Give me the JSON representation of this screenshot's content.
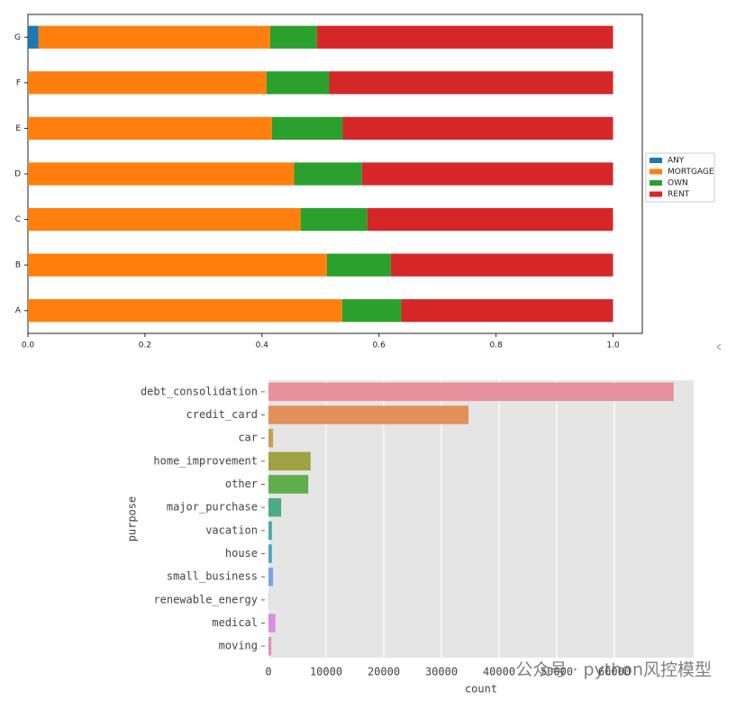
{
  "chart_data": [
    {
      "type": "bar",
      "orientation": "horizontal",
      "stacked": true,
      "categories": [
        "A",
        "B",
        "C",
        "D",
        "E",
        "F",
        "G"
      ],
      "series": [
        {
          "name": "ANY",
          "color": "#1f77b4",
          "values": [
            0,
            0,
            0,
            0,
            0,
            0,
            0.018
          ]
        },
        {
          "name": "MORTGAGE",
          "color": "#ff7f0e",
          "values": [
            0.537,
            0.511,
            0.466,
            0.455,
            0.417,
            0.408,
            0.396
          ]
        },
        {
          "name": "OWN",
          "color": "#2ca02c",
          "values": [
            0.101,
            0.109,
            0.114,
            0.116,
            0.121,
            0.107,
            0.08
          ]
        },
        {
          "name": "RENT",
          "color": "#d62728",
          "values": [
            0.362,
            0.38,
            0.42,
            0.429,
            0.462,
            0.485,
            0.506
          ]
        }
      ],
      "xlim": [
        0,
        1.05
      ],
      "xticks": [
        {
          "value": 0,
          "label": "0.0"
        },
        0.2,
        0.4,
        0.6,
        0.8,
        {
          "value": 1,
          "label": "1.0"
        }
      ],
      "legend": "outside-right",
      "grid": false
    },
    {
      "type": "bar",
      "orientation": "horizontal",
      "stacked": false,
      "xlabel": "count",
      "ylabel": "purpose",
      "categories": [
        "debt_consolidation",
        "credit_card",
        "car",
        "home_improvement",
        "other",
        "major_purchase",
        "vacation",
        "house",
        "small_business",
        "renewable_energy",
        "medical",
        "moving"
      ],
      "values": [
        70300,
        34700,
        800,
        7300,
        6900,
        2200,
        600,
        600,
        800,
        50,
        1200,
        500
      ],
      "colors": [
        "#e8919e",
        "#e2905a",
        "#c89f5a",
        "#9ea240",
        "#5fae4a",
        "#4aab84",
        "#4aa9a8",
        "#4ca6c2",
        "#76a7e5",
        "#a593e2",
        "#d98ee0",
        "#e58bc0"
      ],
      "xlim": [
        0,
        73750
      ],
      "xticks": [
        0,
        10000,
        20000,
        30000,
        40000,
        50000,
        60000
      ],
      "grid": true,
      "annotation": "公众号 · python风控模型"
    }
  ]
}
